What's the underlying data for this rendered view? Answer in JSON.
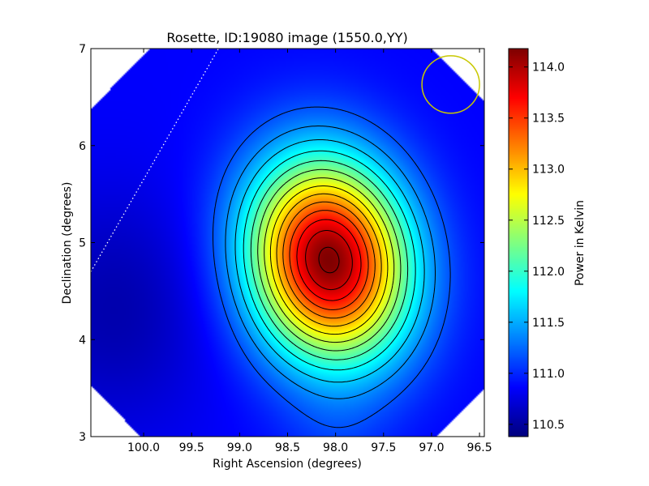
{
  "chart_data": {
    "type": "heatmap",
    "title": "Rosette, ID:19080 image (1550.0,YY)",
    "xlabel": "Right Ascension (degrees)",
    "ylabel": "Declination (degrees)",
    "xlim": [
      100.55,
      96.45
    ],
    "ylim": [
      3,
      7
    ],
    "x_ticks": [
      {
        "value": 100.0,
        "label": "100.0"
      },
      {
        "value": 99.5,
        "label": "99.5"
      },
      {
        "value": 99.0,
        "label": "99.0"
      },
      {
        "value": 98.5,
        "label": "98.5"
      },
      {
        "value": 98.0,
        "label": "98.0"
      },
      {
        "value": 97.5,
        "label": "97.5"
      },
      {
        "value": 97.0,
        "label": "97.0"
      },
      {
        "value": 96.5,
        "label": "96.5"
      }
    ],
    "y_ticks": [
      {
        "value": 3,
        "label": "3"
      },
      {
        "value": 4,
        "label": "4"
      },
      {
        "value": 5,
        "label": "5"
      },
      {
        "value": 6,
        "label": "6"
      },
      {
        "value": 7,
        "label": "7"
      }
    ],
    "colorbar": {
      "label": "Power in Kelvin",
      "range": [
        110.38,
        114.18
      ],
      "ticks": [
        110.5,
        111.0,
        111.5,
        112.0,
        112.5,
        113.0,
        113.5,
        114.0
      ],
      "tick_labels": [
        "110.5",
        "111.0",
        "111.5",
        "112.0",
        "112.5",
        "113.0",
        "113.5",
        "114.0"
      ],
      "colormap": "jet"
    },
    "source": {
      "ra": 98.07,
      "dec": 4.82,
      "peak": 114.18
    },
    "background_level": 110.85,
    "contour_count": 14,
    "beam_circle": {
      "ra": 96.8,
      "dec": 6.63,
      "radius_deg": 0.3,
      "color": "#c8c800"
    },
    "dotted_line": {
      "from": [
        100.55,
        4.7
      ],
      "to": [
        99.22,
        7.0
      ],
      "color": "#ffffff"
    }
  }
}
